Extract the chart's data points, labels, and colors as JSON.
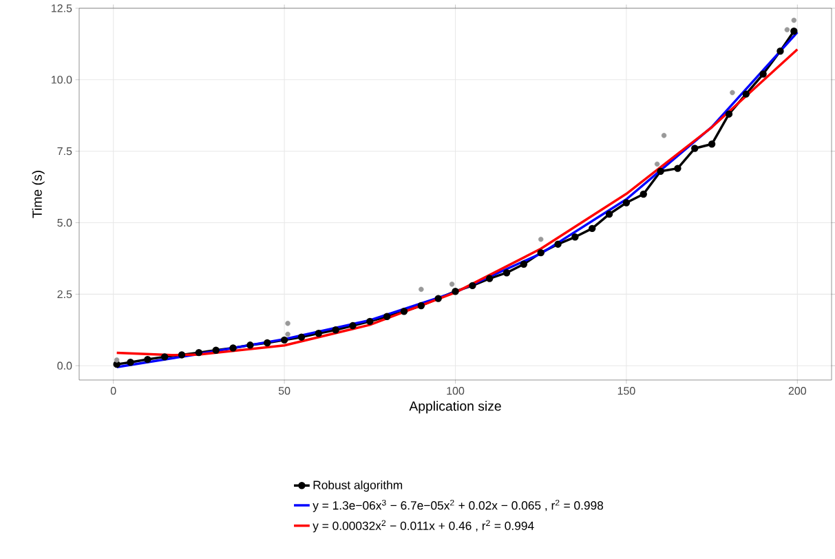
{
  "chart_data": {
    "type": "line",
    "xlabel": "Application size",
    "ylabel": "Time (s)",
    "xlim": [
      -10,
      210
    ],
    "ylim": [
      -0.5,
      12.5
    ],
    "xticks": [
      0,
      50,
      100,
      150,
      200
    ],
    "yticks": [
      {
        "value": 0,
        "label": "0.0"
      },
      {
        "value": 2.5,
        "label": "2.5"
      },
      {
        "value": 5,
        "label": "5.0"
      },
      {
        "value": 7.5,
        "label": "7.5"
      },
      {
        "value": 10,
        "label": "10.0"
      },
      {
        "value": 12.5,
        "label": "12.5"
      }
    ],
    "grid": true,
    "legend": "bottom",
    "series": [
      {
        "name": "Robust algorithm",
        "marker": "circle",
        "color": "#000000",
        "x": [
          1,
          5,
          10,
          15,
          20,
          25,
          30,
          35,
          40,
          45,
          50,
          55,
          60,
          65,
          70,
          75,
          80,
          85,
          90,
          95,
          100,
          105,
          110,
          115,
          120,
          125,
          130,
          135,
          140,
          145,
          150,
          155,
          160,
          165,
          170,
          175,
          180,
          185,
          190,
          195,
          199
        ],
        "values": [
          0.05,
          0.12,
          0.22,
          0.31,
          0.38,
          0.46,
          0.54,
          0.62,
          0.72,
          0.8,
          0.9,
          1.0,
          1.13,
          1.25,
          1.4,
          1.55,
          1.72,
          1.9,
          2.1,
          2.35,
          2.6,
          2.8,
          3.05,
          3.25,
          3.55,
          3.95,
          4.25,
          4.5,
          4.8,
          5.3,
          5.7,
          6.0,
          6.8,
          6.9,
          7.6,
          7.75,
          8.8,
          9.5,
          10.2,
          11.0,
          11.7
        ]
      },
      {
        "type": "scatter",
        "marker": "circle",
        "color": "#999999",
        "x": [
          1,
          51,
          51,
          90,
          99,
          125,
          159,
          161,
          181,
          197,
          199
        ],
        "values": [
          0.2,
          1.48,
          1.1,
          2.67,
          2.85,
          4.42,
          7.05,
          8.05,
          9.55,
          11.75,
          12.08
        ]
      },
      {
        "name": "y = 1.3e−06x$^{3}$ − 6.7e−05x$^{2}$ + 0.02x − 0.065 , r$^{2}$ = 0.998",
        "marker": "none",
        "color": "#0000ff",
        "x": [
          1,
          25,
          50,
          75,
          100,
          125,
          150,
          175,
          200
        ],
        "values": [
          -0.05,
          0.41,
          0.93,
          1.59,
          2.57,
          3.92,
          5.82,
          8.35,
          11.66
        ]
      },
      {
        "name": "y = 0.00032x$^{2}$ − 0.011x + 0.46 , r$^{2}$ = 0.994",
        "marker": "none",
        "color": "#ff0000",
        "x": [
          1,
          17,
          25,
          50,
          75,
          100,
          125,
          150,
          175,
          200
        ],
        "values": [
          0.45,
          0.37,
          0.39,
          0.71,
          1.43,
          2.56,
          4.09,
          6.01,
          8.34,
          11.06
        ]
      }
    ]
  }
}
